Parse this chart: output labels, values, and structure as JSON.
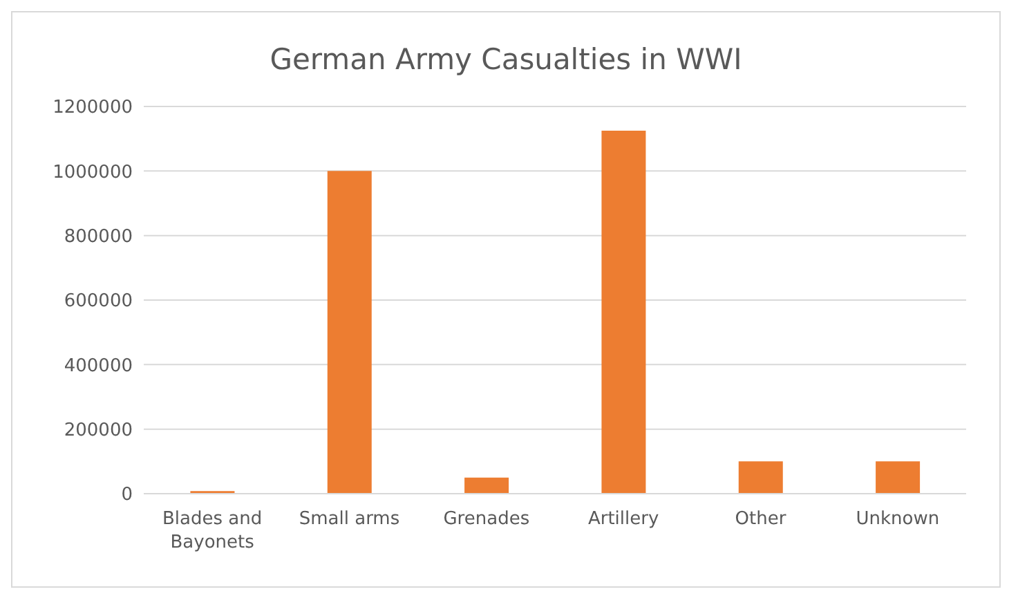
{
  "chart_data": {
    "type": "bar",
    "title": "German Army Casualties in WWI",
    "categories": [
      "Blades and Bayonets",
      "Small arms",
      "Grenades",
      "Artillery",
      "Other",
      "Unknown"
    ],
    "values": [
      8000,
      1000000,
      50000,
      1125000,
      100000,
      100000
    ],
    "color": "#ed7d31",
    "ylim": [
      0,
      1200000
    ],
    "yticks": [
      0,
      200000,
      400000,
      600000,
      800000,
      1000000,
      1200000
    ],
    "grid": "y",
    "legend": false
  }
}
